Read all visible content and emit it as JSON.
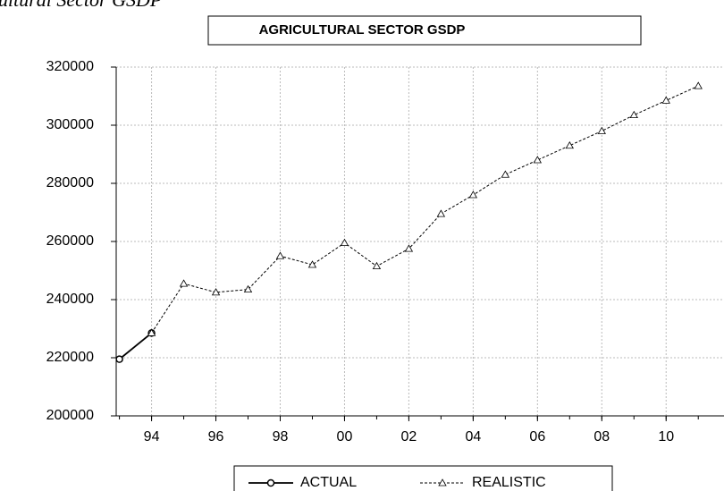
{
  "chart_data": {
    "type": "line",
    "subtitle": "ultural Sector GSDP",
    "title": "AGRICULTURAL SECTOR GSDP",
    "x": [
      1993,
      1994,
      1995,
      1996,
      1997,
      1998,
      1999,
      2000,
      2001,
      2002,
      2003,
      2004,
      2005,
      2006,
      2007,
      2008,
      2009,
      2010,
      2011
    ],
    "series": [
      {
        "name": "ACTUAL",
        "color": "#000000",
        "marker": "circle",
        "dash": false,
        "values": [
          219500,
          228500,
          null,
          null,
          null,
          null,
          null,
          null,
          null,
          null,
          null,
          null,
          null,
          null,
          null,
          null,
          null,
          null,
          null
        ]
      },
      {
        "name": "REALISTIC",
        "color": "#000000",
        "marker": "triangle",
        "dash": true,
        "values": [
          null,
          228500,
          245500,
          242500,
          243500,
          255000,
          252000,
          259500,
          251500,
          257500,
          269500,
          276000,
          283000,
          288000,
          293000,
          298000,
          303500,
          308500,
          313500
        ]
      }
    ],
    "xlim": [
      1992.9,
      2011.8
    ],
    "xticks": [
      {
        "value": 1994,
        "label": "94"
      },
      {
        "value": 1996,
        "label": "96"
      },
      {
        "value": 1998,
        "label": "98"
      },
      {
        "value": 2000,
        "label": "00"
      },
      {
        "value": 2002,
        "label": "02"
      },
      {
        "value": 2004,
        "label": "04"
      },
      {
        "value": 2006,
        "label": "06"
      },
      {
        "value": 2008,
        "label": "08"
      },
      {
        "value": 2010,
        "label": "10"
      }
    ],
    "ylim": [
      200000,
      320000
    ],
    "yticks": [
      200000,
      220000,
      240000,
      260000,
      280000,
      300000,
      320000
    ],
    "grid": true,
    "legend": "bottom"
  }
}
